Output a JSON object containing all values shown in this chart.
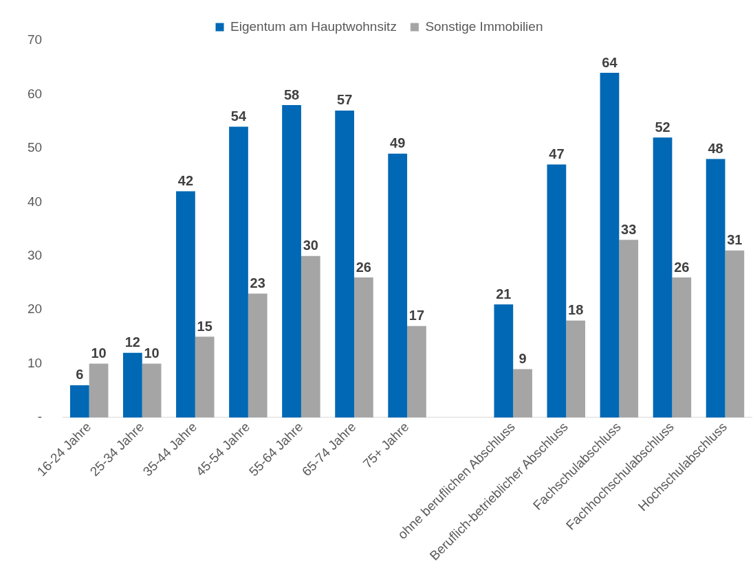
{
  "chart_data": {
    "type": "bar",
    "categories": [
      "16-24 Jahre",
      "25-34 Jahre",
      "35-44 Jahre",
      "45-54 Jahre",
      "55-64 Jahre",
      "65-74 Jahre",
      "75+ Jahre",
      null,
      "ohne beruflichen Abschluss",
      "Beruflich-betrieblicher Abschluss",
      "Fachschulabschluss",
      "Fachhochschulabschluss",
      "Hochschulabschluss"
    ],
    "series": [
      {
        "name": "Eigentum am Hauptwohnsitz",
        "color": "#0068b4",
        "values": [
          6,
          12,
          42,
          54,
          58,
          57,
          49,
          null,
          21,
          47,
          64,
          52,
          48
        ]
      },
      {
        "name": "Sonstige Immobilien",
        "color": "#a5a5a5",
        "values": [
          10,
          10,
          15,
          23,
          30,
          26,
          17,
          null,
          9,
          18,
          33,
          26,
          31
        ]
      }
    ],
    "ylim": [
      0,
      70
    ],
    "yticks": [
      {
        "value": 0,
        "label": "-"
      },
      10,
      20,
      30,
      40,
      50,
      60,
      70
    ],
    "grid": false,
    "legend": "top",
    "data_labels": true
  }
}
